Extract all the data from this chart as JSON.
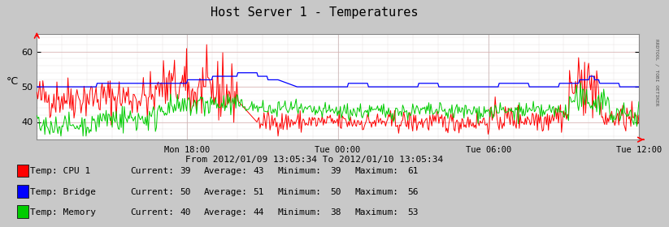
{
  "title": "Host Server 1 - Temperatures",
  "subtitle": "From 2012/01/09 13:05:34 To 2012/01/10 13:05:34",
  "ylabel": "°C",
  "right_label": "RRDTOOL / TOBI OETIKER",
  "ylim": [
    35,
    65
  ],
  "yticks": [
    40,
    50,
    60
  ],
  "background_color": "#c8c8c8",
  "plot_bg_color": "#ffffff",
  "x_tick_labels": [
    "Mon 18:00",
    "Tue 00:00",
    "Tue 06:00",
    "Tue 12:00"
  ],
  "series": [
    {
      "name": "Temp: CPU 1",
      "color": "#ff0000",
      "current": 39,
      "average": 43,
      "minimum": 39,
      "maximum": 61
    },
    {
      "name": "Temp: Bridge",
      "color": "#0000ff",
      "current": 50,
      "average": 51,
      "minimum": 50,
      "maximum": 56
    },
    {
      "name": "Temp: Memory",
      "color": "#00cc00",
      "current": 40,
      "average": 44,
      "minimum": 38,
      "maximum": 53
    }
  ],
  "n_points": 600
}
